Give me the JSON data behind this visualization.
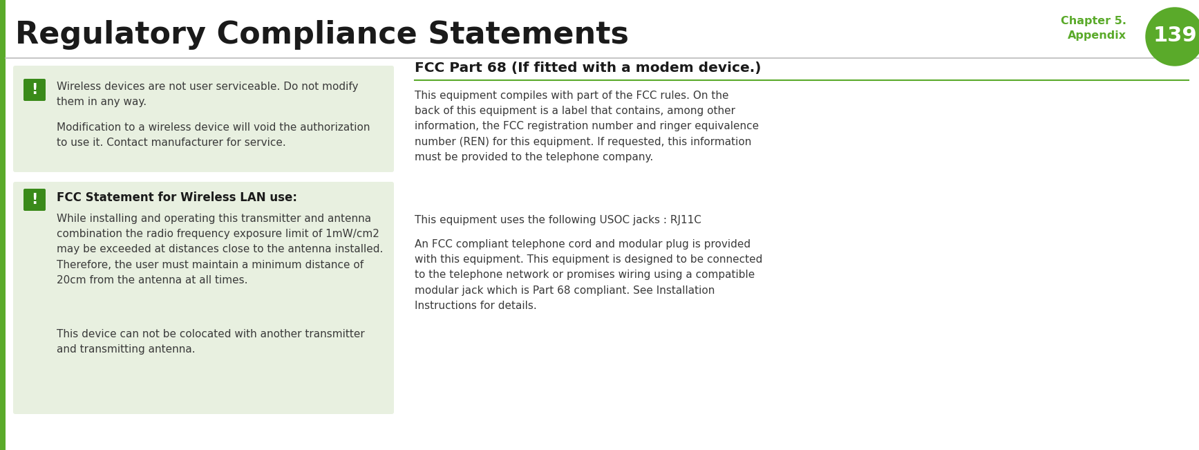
{
  "bg_color": "#ffffff",
  "title": "Regulatory Compliance Statements",
  "title_color": "#1a1a1a",
  "title_fontsize": 32,
  "chapter_label": "Chapter 5.\nAppendix",
  "chapter_color": "#5aaa2a",
  "page_number": "139",
  "page_number_color": "#ffffff",
  "page_circle_color": "#5aaa2a",
  "header_line_color": "#bbbbbb",
  "left_bar_color": "#5aaa2a",
  "left_bg_color": "#e8f0e0",
  "warning_icon_color": "#3a8a1a",
  "section_header_color": "#1a1a1a",
  "body_text_color": "#3a3a3a",
  "right_heading_color": "#1a1a1a",
  "right_heading_underline": "#5aaa2a",
  "block1_text1": "Wireless devices are not user serviceable. Do not modify\nthem in any way.",
  "block1_text2": "Modification to a wireless device will void the authorization\nto use it. Contact manufacturer for service.",
  "block2_title": "FCC Statement for Wireless LAN use:",
  "block2_text1": "While installing and operating this transmitter and antenna\ncombination the radio frequency exposure limit of 1mW/cm2\nmay be exceeded at distances close to the antenna installed.\nTherefore, the user must maintain a minimum distance of\n20cm from the antenna at all times.",
  "block2_text2": "This device can not be colocated with another transmitter\nand transmitting antenna.",
  "right_title": "FCC Part 68 (If fitted with a modem device.)",
  "right_para1": "This equipment compiles with part of the FCC rules. On the\nback of this equipment is a label that contains, among other\ninformation, the FCC registration number and ringer equivalence\nnumber (REN) for this equipment. If requested, this information\nmust be provided to the telephone company.",
  "right_para2": "This equipment uses the following USOC jacks : RJ11C",
  "right_para3": "An FCC compliant telephone cord and modular plug is provided\nwith this equipment. This equipment is designed to be connected\nto the telephone network or promises wiring using a compatible\nmodular jack which is Part 68 compliant. See Installation\nInstructions for details."
}
